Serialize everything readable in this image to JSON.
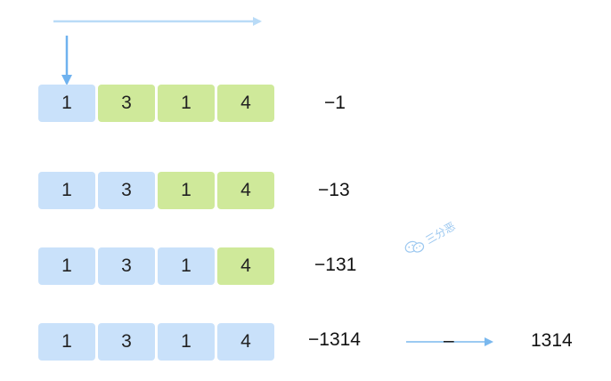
{
  "rows": [
    {
      "digits": [
        "1",
        "3",
        "1",
        "4"
      ],
      "processed": 1,
      "result": "−1"
    },
    {
      "digits": [
        "1",
        "3",
        "1",
        "4"
      ],
      "processed": 2,
      "result": "−13"
    },
    {
      "digits": [
        "1",
        "3",
        "1",
        "4"
      ],
      "processed": 3,
      "result": "−131"
    },
    {
      "digits": [
        "1",
        "3",
        "1",
        "4"
      ],
      "processed": 4,
      "result": "−1314"
    }
  ],
  "conversion": {
    "minus": "–",
    "final": "1314"
  },
  "watermark": {
    "text": "三分恶",
    "icon": "wechat-icon"
  },
  "colors": {
    "processed": "#c9e1fa",
    "pending": "#cfe99a",
    "arrow": "#6fb2ef",
    "arrow_light": "#b9dbf7"
  }
}
